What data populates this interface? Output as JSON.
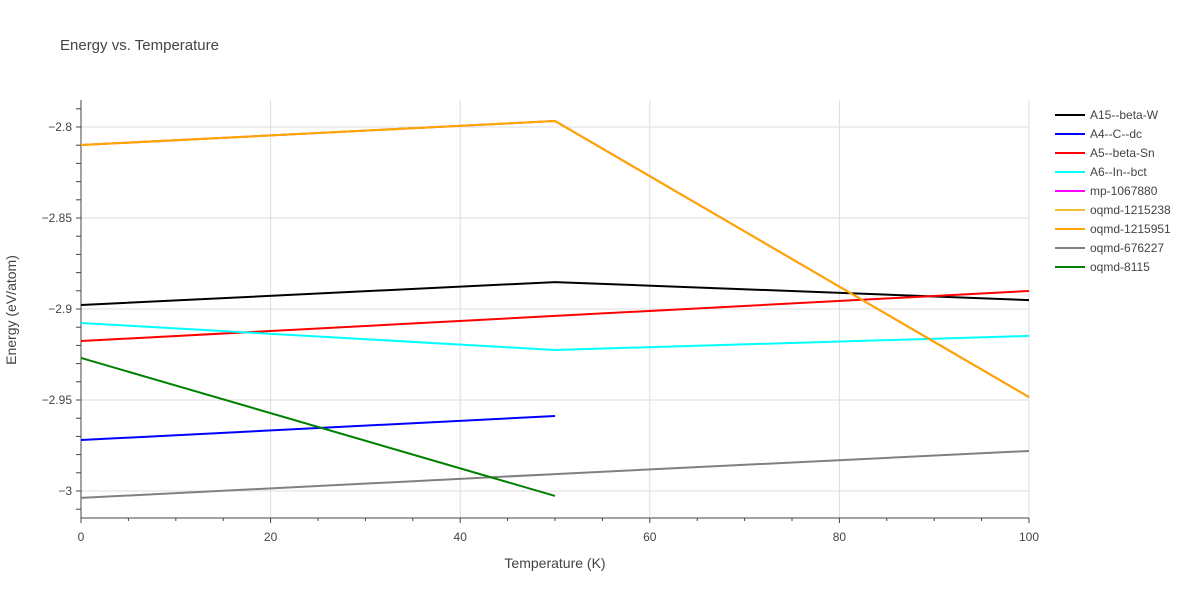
{
  "chart_data": {
    "type": "line",
    "title": "Energy vs. Temperature",
    "xlabel": "Temperature (K)",
    "ylabel": "Energy (eV/atom)",
    "xlim": [
      0,
      100
    ],
    "ylim": [
      -3.014,
      -2.786
    ],
    "xticks": [
      0,
      20,
      40,
      60,
      80,
      100
    ],
    "yticks": [
      -3,
      -2.95,
      -2.9,
      -2.85,
      -2.8
    ],
    "ytick_labels": [
      "−3",
      "−2.95",
      "−2.9",
      "−2.85",
      "−2.8"
    ],
    "grid": true,
    "legend_position": "right",
    "series": [
      {
        "name": "A15--beta-W",
        "color": "#000000",
        "x": [
          0,
          50,
          100
        ],
        "y": [
          -2.8978,
          -2.8852,
          -2.8951
        ]
      },
      {
        "name": "A4--C--dc",
        "color": "#0000ff",
        "x": [
          0,
          50
        ],
        "y": [
          -2.972,
          -2.9588
        ]
      },
      {
        "name": "A5--beta-Sn",
        "color": "#ff0000",
        "x": [
          0,
          50,
          100
        ],
        "y": [
          -2.9176,
          -2.9038,
          -2.8901
        ]
      },
      {
        "name": "A6--In--bct",
        "color": "#00ffff",
        "x": [
          0,
          50,
          100
        ],
        "y": [
          -2.9077,
          -2.9225,
          -2.9148
        ]
      },
      {
        "name": "mp-1067880",
        "color": "#ff00ff",
        "x": [
          0,
          50,
          100
        ],
        "y": [
          -2.8099,
          -2.7967,
          -2.9484
        ]
      },
      {
        "name": "oqmd-1215238",
        "color": "#f0c030",
        "x": [
          0,
          50,
          100
        ],
        "y": [
          -2.8099,
          -2.7967,
          -2.9484
        ]
      },
      {
        "name": "oqmd-1215951",
        "color": "#ffa500",
        "x": [
          0,
          50,
          100
        ],
        "y": [
          -2.8099,
          -2.7967,
          -2.9484
        ]
      },
      {
        "name": "oqmd-676227",
        "color": "#808080",
        "x": [
          0,
          50,
          100
        ],
        "y": [
          -3.0038,
          -2.9907,
          -2.978
        ]
      },
      {
        "name": "oqmd-8115",
        "color": "#008000",
        "x": [
          0,
          50
        ],
        "y": [
          -2.9269,
          -3.0027
        ]
      }
    ]
  }
}
